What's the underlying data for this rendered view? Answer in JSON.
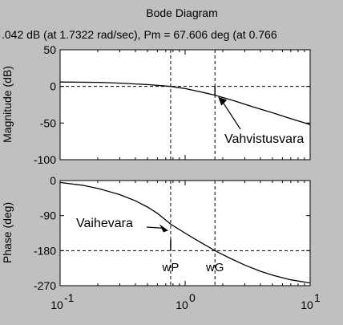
{
  "chart_data": [
    {
      "type": "line",
      "panel": "magnitude",
      "title": "Bode Diagram",
      "subtitle": ".042 dB (at 1.7322 rad/sec),  Pm = 67.606 deg (at 0.766",
      "xlabel": "",
      "ylabel": "Magnitude (dB)",
      "xscale": "log",
      "xlim": [
        0.1,
        10
      ],
      "ylim": [
        -100,
        50
      ],
      "yticks": [
        "50",
        "0",
        "-50",
        "-100"
      ],
      "grid": false,
      "series": [
        {
          "x": [
            0.1,
            0.2,
            0.3,
            0.5,
            0.7,
            0.766,
            1.0,
            1.3,
            1.7322,
            2.5,
            3.5,
            5,
            7,
            10
          ],
          "y": [
            6,
            5.5,
            4.5,
            2.5,
            0.5,
            0,
            -3,
            -7,
            -12,
            -20,
            -28,
            -36,
            -44,
            -52
          ]
        }
      ],
      "reference_lines": {
        "horizontal": [
          0
        ],
        "vertical": [
          0.766,
          1.7322
        ]
      },
      "annotations": [
        {
          "text": "Vahvistusvara",
          "arrow_to": {
            "x": 1.7322,
            "y": -12
          }
        }
      ]
    },
    {
      "type": "line",
      "panel": "phase",
      "xlabel": "",
      "ylabel": "Phase (deg)",
      "xscale": "log",
      "xlim": [
        0.1,
        10
      ],
      "ylim": [
        -270,
        0
      ],
      "yticks": [
        "0",
        "-90",
        "-180",
        "-270"
      ],
      "xticks": [
        "10",
        "10",
        "10"
      ],
      "xtick_exponents": [
        "-1",
        "0",
        "1"
      ],
      "grid": false,
      "series": [
        {
          "x": [
            0.1,
            0.15,
            0.2,
            0.3,
            0.4,
            0.5,
            0.6,
            0.766,
            1.0,
            1.3,
            1.7322,
            2.3,
            3,
            4,
            5,
            7,
            10
          ],
          "y": [
            -5,
            -12,
            -20,
            -36,
            -52,
            -68,
            -84,
            -112,
            -135,
            -157,
            -180,
            -200,
            -217,
            -233,
            -243,
            -255,
            -263
          ]
        }
      ],
      "reference_lines": {
        "horizontal": [
          -180
        ],
        "vertical": [
          0.766,
          1.7322
        ]
      },
      "annotations": [
        {
          "text": "Vaihevara",
          "arrow_to": {
            "x": 0.766,
            "y": -112
          }
        },
        {
          "text": "wP",
          "at_x": 0.766
        },
        {
          "text": "wG",
          "at_x": 1.7322
        }
      ]
    }
  ]
}
